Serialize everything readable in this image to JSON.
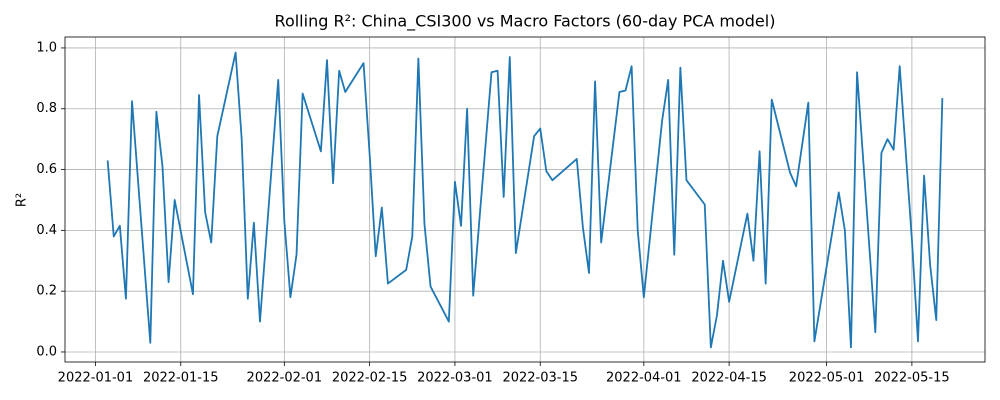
{
  "chart_data": {
    "type": "line",
    "title": "Rolling R²: China_CSI300 vs Macro Factors (60-day PCA model)",
    "y_label": "R²",
    "x": [
      "2022-01-03",
      "2022-01-04",
      "2022-01-05",
      "2022-01-06",
      "2022-01-07",
      "2022-01-10",
      "2022-01-11",
      "2022-01-12",
      "2022-01-13",
      "2022-01-14",
      "2022-01-17",
      "2022-01-18",
      "2022-01-19",
      "2022-01-20",
      "2022-01-21",
      "2022-01-24",
      "2022-01-25",
      "2022-01-26",
      "2022-01-27",
      "2022-01-28",
      "2022-01-31",
      "2022-02-01",
      "2022-02-02",
      "2022-02-03",
      "2022-02-04",
      "2022-02-07",
      "2022-02-08",
      "2022-02-09",
      "2022-02-10",
      "2022-02-11",
      "2022-02-14",
      "2022-02-15",
      "2022-02-16",
      "2022-02-17",
      "2022-02-18",
      "2022-02-21",
      "2022-02-22",
      "2022-02-23",
      "2022-02-24",
      "2022-02-25",
      "2022-02-28",
      "2022-03-01",
      "2022-03-02",
      "2022-03-03",
      "2022-03-04",
      "2022-03-07",
      "2022-03-08",
      "2022-03-09",
      "2022-03-10",
      "2022-03-11",
      "2022-03-14",
      "2022-03-15",
      "2022-03-16",
      "2022-03-17",
      "2022-03-21",
      "2022-03-22",
      "2022-03-23",
      "2022-03-24",
      "2022-03-25",
      "2022-03-28",
      "2022-03-29",
      "2022-03-30",
      "2022-03-31",
      "2022-04-01",
      "2022-04-04",
      "2022-04-05",
      "2022-04-06",
      "2022-04-07",
      "2022-04-08",
      "2022-04-11",
      "2022-04-12",
      "2022-04-13",
      "2022-04-14",
      "2022-04-15",
      "2022-04-18",
      "2022-04-19",
      "2022-04-20",
      "2022-04-21",
      "2022-04-22",
      "2022-04-25",
      "2022-04-26",
      "2022-04-28",
      "2022-04-29",
      "2022-05-03",
      "2022-05-04",
      "2022-05-05",
      "2022-05-06",
      "2022-05-09",
      "2022-05-10",
      "2022-05-11",
      "2022-05-12",
      "2022-05-13",
      "2022-05-15",
      "2022-05-16",
      "2022-05-17",
      "2022-05-18",
      "2022-05-19",
      "2022-05-20"
    ],
    "series": [
      {
        "name": "R²",
        "color": "#1f77b4",
        "values": [
          0.63,
          0.38,
          0.415,
          0.175,
          0.825,
          0.03,
          0.79,
          0.61,
          0.23,
          0.5,
          0.19,
          0.845,
          0.46,
          0.36,
          0.71,
          0.985,
          0.7,
          0.175,
          0.425,
          0.1,
          0.895,
          0.43,
          0.18,
          0.32,
          0.85,
          0.66,
          0.96,
          0.555,
          0.925,
          0.855,
          0.95,
          0.65,
          0.315,
          0.475,
          0.225,
          0.27,
          0.38,
          0.965,
          0.42,
          0.215,
          0.1,
          0.56,
          0.415,
          0.8,
          0.185,
          0.92,
          0.925,
          0.51,
          0.97,
          0.325,
          0.71,
          0.735,
          0.595,
          0.565,
          0.635,
          0.41,
          0.26,
          0.89,
          0.36,
          0.855,
          0.86,
          0.94,
          0.4,
          0.18,
          0.76,
          0.895,
          0.32,
          0.935,
          0.565,
          0.485,
          0.015,
          0.12,
          0.3,
          0.165,
          0.455,
          0.3,
          0.66,
          0.225,
          0.83,
          0.59,
          0.545,
          0.82,
          0.035,
          0.525,
          0.4,
          0.015,
          0.92,
          0.065,
          0.655,
          0.7,
          0.665,
          0.94,
          0.37,
          0.035,
          0.58,
          0.285,
          0.105,
          0.835
        ]
      }
    ],
    "xlim": [
      "2021-12-27",
      "2022-05-27"
    ],
    "xticks": [
      "2022-01-01",
      "2022-01-15",
      "2022-02-01",
      "2022-02-15",
      "2022-03-01",
      "2022-03-15",
      "2022-04-01",
      "2022-04-15",
      "2022-05-01",
      "2022-05-15"
    ],
    "ylim": [
      -0.033,
      1.036
    ],
    "yticks": [
      {
        "value": 0,
        "label": "0.0"
      },
      {
        "value": 0.2,
        "label": "0.2"
      },
      {
        "value": 0.4,
        "label": "0.4"
      },
      {
        "value": 0.6,
        "label": "0.6"
      },
      {
        "value": 0.8,
        "label": "0.8"
      },
      {
        "value": 1,
        "label": "1.0"
      }
    ],
    "grid": true
  }
}
